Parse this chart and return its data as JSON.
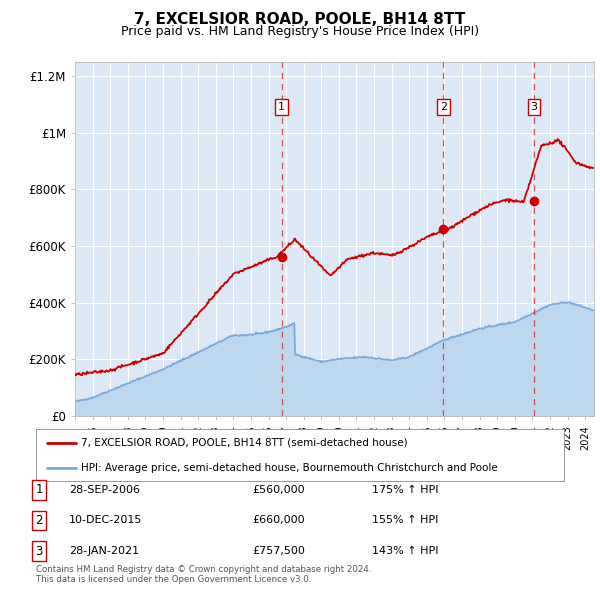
{
  "title": "7, EXCELSIOR ROAD, POOLE, BH14 8TT",
  "subtitle": "Price paid vs. HM Land Registry's House Price Index (HPI)",
  "title_fontsize": 11,
  "subtitle_fontsize": 9,
  "background_color": "#ffffff",
  "plot_bg_color": "#dce8f5",
  "grid_color": "#ffffff",
  "hpi_line_color": "#7aaadd",
  "hpi_fill_color": "#b8d4ee",
  "price_line_color": "#cc0000",
  "ylim": [
    0,
    1250000
  ],
  "yticks": [
    0,
    200000,
    400000,
    600000,
    800000,
    1000000,
    1200000
  ],
  "ytick_labels": [
    "£0",
    "£200K",
    "£400K",
    "£600K",
    "£800K",
    "£1M",
    "£1.2M"
  ],
  "sales": [
    {
      "year": 2006.75,
      "price": 560000,
      "label": "1"
    },
    {
      "year": 2015.94,
      "price": 660000,
      "label": "2"
    },
    {
      "year": 2021.08,
      "price": 757500,
      "label": "3"
    }
  ],
  "vline_years": [
    2006.75,
    2015.94,
    2021.08
  ],
  "legend_price_label": "7, EXCELSIOR ROAD, POOLE, BH14 8TT (semi-detached house)",
  "legend_hpi_label": "HPI: Average price, semi-detached house, Bournemouth Christchurch and Poole",
  "table_rows": [
    {
      "num": "1",
      "date": "28-SEP-2006",
      "price": "£560,000",
      "hpi": "175% ↑ HPI"
    },
    {
      "num": "2",
      "date": "10-DEC-2015",
      "price": "£660,000",
      "hpi": "155% ↑ HPI"
    },
    {
      "num": "3",
      "date": "28-JAN-2021",
      "price": "£757,500",
      "hpi": "143% ↑ HPI"
    }
  ],
  "footnote": "Contains HM Land Registry data © Crown copyright and database right 2024.\nThis data is licensed under the Open Government Licence v3.0.",
  "xmin": 1995,
  "xmax": 2024.5
}
